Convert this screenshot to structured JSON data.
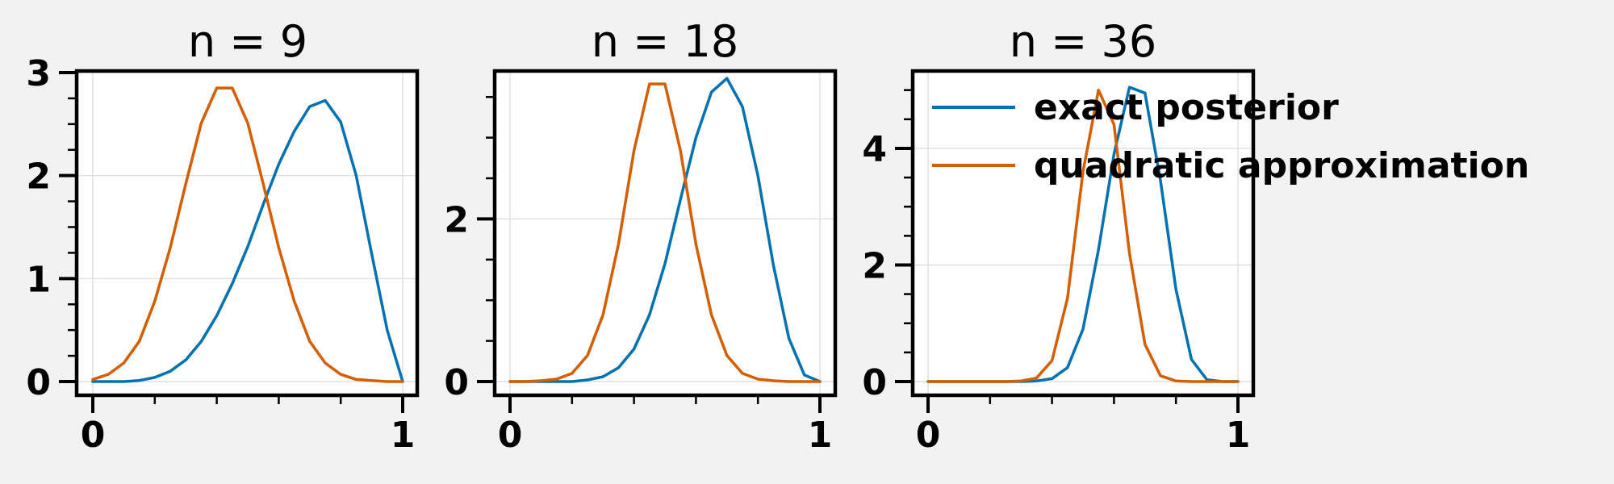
{
  "figure": {
    "background": "#f2f2f2"
  },
  "colors": {
    "exact": "#0072b2",
    "quad": "#d55e00",
    "axis": "#000000",
    "grid": "#d9d9d9",
    "panel_bg": "#ffffff"
  },
  "legend": {
    "placement": "top-right, extending outside the third panel",
    "entries": [
      {
        "label": "exact posterior",
        "color": "#0072b2"
      },
      {
        "label": "quadratic approximation",
        "color": "#d55e00"
      }
    ]
  },
  "chart_data": [
    {
      "type": "line",
      "title": "n = 9",
      "n": 9,
      "xlim": [
        0,
        1
      ],
      "ylim": [
        0,
        3
      ],
      "xticks": [
        0,
        1
      ],
      "xtick_labels": [
        "0",
        "1"
      ],
      "yticks": [
        0,
        1,
        2,
        3
      ],
      "ytick_labels": [
        "0",
        "1",
        "2",
        "3"
      ],
      "grid": true,
      "series": [
        {
          "name": "exact posterior",
          "color": "#0072b2",
          "x": [
            0,
            0.05,
            0.1,
            0.15,
            0.2,
            0.25,
            0.3,
            0.35,
            0.4,
            0.45,
            0.5,
            0.55,
            0.6,
            0.65,
            0.7,
            0.75,
            0.8,
            0.85,
            0.9,
            0.95,
            1
          ],
          "y": [
            0,
            0.0,
            0.0,
            0.01,
            0.04,
            0.1,
            0.21,
            0.39,
            0.64,
            0.95,
            1.31,
            1.72,
            2.11,
            2.43,
            2.67,
            2.73,
            2.52,
            2.0,
            1.24,
            0.5,
            0.0
          ]
        },
        {
          "name": "quadratic approximation",
          "color": "#d55e00",
          "x": [
            0,
            0.05,
            0.1,
            0.15,
            0.2,
            0.25,
            0.3,
            0.35,
            0.4,
            0.45,
            0.5,
            0.55,
            0.6,
            0.65,
            0.7,
            0.75,
            0.8,
            0.85,
            0.9,
            0.95,
            1
          ],
          "y": [
            0.02,
            0.07,
            0.18,
            0.39,
            0.78,
            1.3,
            1.92,
            2.51,
            2.85,
            2.85,
            2.51,
            1.92,
            1.3,
            0.78,
            0.39,
            0.18,
            0.07,
            0.02,
            0.01,
            0.0,
            0.0
          ]
        }
      ]
    },
    {
      "type": "line",
      "title": "n = 18",
      "n": 18,
      "xlim": [
        0,
        1
      ],
      "ylim": [
        0,
        3.8
      ],
      "xticks": [
        0,
        1
      ],
      "xtick_labels": [
        "0",
        "1"
      ],
      "yticks": [
        0,
        2
      ],
      "ytick_labels": [
        "0",
        "2"
      ],
      "grid": true,
      "series": [
        {
          "name": "exact posterior",
          "color": "#0072b2",
          "x": [
            0,
            0.05,
            0.1,
            0.15,
            0.2,
            0.25,
            0.3,
            0.35,
            0.4,
            0.45,
            0.5,
            0.55,
            0.6,
            0.65,
            0.7,
            0.75,
            0.8,
            0.85,
            0.9,
            0.95,
            1
          ],
          "y": [
            0,
            0.0,
            0.0,
            0.0,
            0.0,
            0.02,
            0.06,
            0.17,
            0.4,
            0.82,
            1.45,
            2.24,
            3.0,
            3.56,
            3.73,
            3.38,
            2.53,
            1.43,
            0.53,
            0.08,
            0.0
          ]
        },
        {
          "name": "quadratic approximation",
          "color": "#d55e00",
          "x": [
            0,
            0.05,
            0.1,
            0.15,
            0.2,
            0.25,
            0.3,
            0.35,
            0.4,
            0.45,
            0.5,
            0.55,
            0.6,
            0.65,
            0.7,
            0.75,
            0.8,
            0.85,
            0.9,
            0.95,
            1
          ],
          "y": [
            0,
            0.0,
            0.01,
            0.03,
            0.1,
            0.32,
            0.82,
            1.69,
            2.84,
            3.66,
            3.66,
            2.84,
            1.69,
            0.82,
            0.32,
            0.1,
            0.03,
            0.01,
            0.0,
            0.0,
            0.0
          ]
        }
      ]
    },
    {
      "type": "line",
      "title": "n = 36",
      "n": 36,
      "xlim": [
        0,
        1
      ],
      "ylim": [
        0,
        5.3
      ],
      "xticks": [
        0,
        1
      ],
      "xtick_labels": [
        "0",
        "1"
      ],
      "yticks": [
        0,
        2,
        4
      ],
      "ytick_labels": [
        "0",
        "2",
        "4"
      ],
      "grid": true,
      "series": [
        {
          "name": "exact posterior",
          "color": "#0072b2",
          "x": [
            0,
            0.05,
            0.1,
            0.15,
            0.2,
            0.25,
            0.3,
            0.35,
            0.4,
            0.45,
            0.5,
            0.55,
            0.6,
            0.65,
            0.7,
            0.75,
            0.8,
            0.85,
            0.9,
            0.95,
            1
          ],
          "y": [
            0,
            0.0,
            0.0,
            0.0,
            0.0,
            0.0,
            0.0,
            0.01,
            0.05,
            0.24,
            0.9,
            2.26,
            3.9,
            5.05,
            4.95,
            3.45,
            1.58,
            0.38,
            0.03,
            0.0,
            0.0
          ]
        },
        {
          "name": "quadratic approximation",
          "color": "#d55e00",
          "x": [
            0,
            0.05,
            0.1,
            0.15,
            0.2,
            0.25,
            0.3,
            0.35,
            0.4,
            0.45,
            0.5,
            0.55,
            0.6,
            0.65,
            0.7,
            0.75,
            0.8,
            0.85,
            0.9,
            0.95,
            1
          ],
          "y": [
            0,
            0.0,
            0.0,
            0.0,
            0.0,
            0.0,
            0.01,
            0.06,
            0.36,
            1.43,
            3.6,
            5.0,
            4.41,
            2.2,
            0.64,
            0.1,
            0.01,
            0.0,
            0.0,
            0.0,
            0.0
          ]
        }
      ]
    }
  ]
}
